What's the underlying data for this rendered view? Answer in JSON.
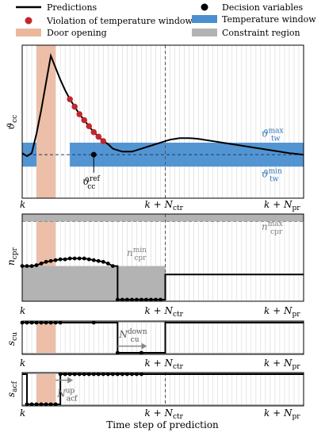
{
  "legend": {
    "predictions": "Predictions",
    "violation": "Violation of temperature window",
    "door": "Door opening",
    "decision": "Decision variables",
    "temp_window": "Temperature window",
    "constraint": "Constraint region"
  },
  "colors": {
    "line": "#000000",
    "violation": "#c0272d",
    "door": "#ebb89e",
    "temp_window": "#4a8fd0",
    "constraint": "#b3b3b3",
    "grid": "#dcdcdc",
    "annotation_gray": "#808080",
    "annotation_blue": "#2b73b6"
  },
  "axis_ticks": {
    "k": "k",
    "k_ctr": "k + N",
    "k_ctr_sub": "ctr",
    "k_pr": "k + N",
    "k_pr_sub": "pr"
  },
  "xlabel": "Time step of prediction",
  "chart_data": [
    {
      "type": "line",
      "panel": "temperature",
      "ylabel": "ϑ",
      "ylabel_sub": "cc",
      "x_range": [
        0,
        59
      ],
      "y_range": [
        0,
        1
      ],
      "n_ctr_step": 30,
      "door_steps": [
        3,
        7
      ],
      "temperature_window": [
        0.2,
        0.36
      ],
      "reference": 0.28,
      "annotations": {
        "max_main": "ϑ",
        "max_sup": "max",
        "max_sub": "tw",
        "min_main": "ϑ",
        "min_sup": "min",
        "min_sub": "tw",
        "ref_main": "ϑ",
        "ref_sup": "ref",
        "ref_sub": "cc"
      },
      "prediction": [
        [
          0,
          0.29
        ],
        [
          1,
          0.27
        ],
        [
          2,
          0.29
        ],
        [
          3,
          0.42
        ],
        [
          4,
          0.58
        ],
        [
          5,
          0.76
        ],
        [
          6,
          0.94
        ],
        [
          7,
          0.86
        ],
        [
          8,
          0.78
        ],
        [
          9,
          0.71
        ],
        [
          10,
          0.65
        ],
        [
          11,
          0.6
        ],
        [
          12,
          0.55
        ],
        [
          13,
          0.51
        ],
        [
          14,
          0.47
        ],
        [
          15,
          0.43
        ],
        [
          16,
          0.4
        ],
        [
          17,
          0.37
        ],
        [
          18,
          0.35
        ],
        [
          19,
          0.32
        ],
        [
          20,
          0.31
        ],
        [
          21,
          0.3
        ],
        [
          22,
          0.3
        ],
        [
          23,
          0.3
        ],
        [
          24,
          0.31
        ],
        [
          25,
          0.32
        ],
        [
          26,
          0.33
        ],
        [
          27,
          0.34
        ],
        [
          28,
          0.35
        ],
        [
          29,
          0.36
        ],
        [
          30,
          0.37
        ],
        [
          31,
          0.38
        ],
        [
          32,
          0.385
        ],
        [
          33,
          0.39
        ],
        [
          34,
          0.39
        ],
        [
          35,
          0.39
        ],
        [
          36,
          0.388
        ],
        [
          37,
          0.385
        ],
        [
          38,
          0.38
        ],
        [
          39,
          0.375
        ],
        [
          40,
          0.37
        ],
        [
          41,
          0.365
        ],
        [
          42,
          0.36
        ],
        [
          43,
          0.355
        ],
        [
          44,
          0.35
        ],
        [
          45,
          0.345
        ],
        [
          46,
          0.34
        ],
        [
          47,
          0.335
        ],
        [
          48,
          0.33
        ],
        [
          49,
          0.325
        ],
        [
          50,
          0.32
        ],
        [
          51,
          0.315
        ],
        [
          52,
          0.31
        ],
        [
          53,
          0.305
        ],
        [
          54,
          0.3
        ],
        [
          55,
          0.295
        ],
        [
          56,
          0.29
        ],
        [
          57,
          0.287
        ],
        [
          58,
          0.283
        ],
        [
          59,
          0.28
        ]
      ],
      "violations": [
        [
          10,
          0.65
        ],
        [
          11,
          0.6
        ],
        [
          12,
          0.55
        ],
        [
          13,
          0.51
        ],
        [
          14,
          0.47
        ],
        [
          15,
          0.43
        ],
        [
          16,
          0.4
        ],
        [
          17,
          0.37
        ]
      ],
      "decision_points": [
        [
          15,
          0.28
        ]
      ]
    },
    {
      "type": "line",
      "panel": "ncpr",
      "ylabel": "n",
      "ylabel_sub": "cpr",
      "x_range": [
        0,
        59
      ],
      "y_range": [
        0,
        1
      ],
      "n_ctr_step": 30,
      "door_steps": [
        3,
        7
      ],
      "max_constraint": 0.93,
      "min_constraint_until_ctr": 0.4,
      "annotations": {
        "max_main": "n",
        "max_sup": "max",
        "max_sub": "cpr",
        "min_main": "n",
        "min_sup": "min",
        "min_sub": "cpr"
      },
      "prediction": [
        [
          0,
          0.4
        ],
        [
          1,
          0.4
        ],
        [
          2,
          0.4
        ],
        [
          3,
          0.41
        ],
        [
          4,
          0.43
        ],
        [
          5,
          0.45
        ],
        [
          6,
          0.46
        ],
        [
          7,
          0.47
        ],
        [
          8,
          0.48
        ],
        [
          9,
          0.48
        ],
        [
          10,
          0.49
        ],
        [
          11,
          0.49
        ],
        [
          12,
          0.49
        ],
        [
          13,
          0.49
        ],
        [
          14,
          0.48
        ],
        [
          15,
          0.47
        ],
        [
          16,
          0.46
        ],
        [
          17,
          0.45
        ],
        [
          18,
          0.43
        ],
        [
          19,
          0.4
        ],
        [
          20,
          0.0
        ],
        [
          21,
          0.0
        ],
        [
          22,
          0.0
        ],
        [
          23,
          0.0
        ],
        [
          24,
          0.0
        ],
        [
          25,
          0.0
        ],
        [
          26,
          0.0
        ],
        [
          27,
          0.0
        ],
        [
          28,
          0.0
        ],
        [
          29,
          0.0
        ],
        [
          30,
          0.3
        ],
        [
          59,
          0.3
        ]
      ],
      "decision_points": [
        [
          0,
          0.4
        ],
        [
          1,
          0.4
        ],
        [
          2,
          0.4
        ],
        [
          3,
          0.41
        ],
        [
          4,
          0.43
        ],
        [
          5,
          0.45
        ],
        [
          6,
          0.46
        ],
        [
          7,
          0.47
        ],
        [
          8,
          0.48
        ],
        [
          9,
          0.48
        ],
        [
          10,
          0.49
        ],
        [
          11,
          0.49
        ],
        [
          12,
          0.49
        ],
        [
          13,
          0.49
        ],
        [
          14,
          0.48
        ],
        [
          15,
          0.47
        ],
        [
          16,
          0.46
        ],
        [
          17,
          0.45
        ],
        [
          18,
          0.43
        ],
        [
          19,
          0.4
        ],
        [
          20,
          0.0
        ],
        [
          21,
          0.0
        ],
        [
          22,
          0.0
        ],
        [
          23,
          0.0
        ],
        [
          24,
          0.0
        ],
        [
          25,
          0.0
        ],
        [
          26,
          0.0
        ],
        [
          27,
          0.0
        ],
        [
          28,
          0.0
        ],
        [
          29,
          0.0
        ]
      ]
    },
    {
      "type": "line",
      "panel": "scu",
      "ylabel": "s",
      "ylabel_sub": "cu",
      "x_range": [
        0,
        59
      ],
      "y_range": [
        0,
        1
      ],
      "n_ctr_step": 30,
      "door_steps": [
        3,
        7
      ],
      "annotation": {
        "main": "N",
        "sup": "down",
        "sub": "cu"
      },
      "prediction": [
        [
          0,
          1
        ],
        [
          19,
          1
        ],
        [
          20,
          0
        ],
        [
          29,
          0
        ],
        [
          30,
          1
        ],
        [
          59,
          1
        ]
      ],
      "decision_points": [
        [
          0,
          1
        ],
        [
          1,
          1
        ],
        [
          2,
          1
        ],
        [
          3,
          1
        ],
        [
          4,
          1
        ],
        [
          5,
          1
        ],
        [
          6,
          1
        ],
        [
          7,
          1
        ],
        [
          8,
          1
        ],
        [
          15,
          1
        ],
        [
          20,
          0
        ],
        [
          25,
          0
        ]
      ]
    },
    {
      "type": "line",
      "panel": "sacf",
      "ylabel": "s",
      "ylabel_sub": "acf",
      "x_range": [
        0,
        59
      ],
      "y_range": [
        0,
        1
      ],
      "n_ctr_step": 30,
      "door_steps": [
        3,
        7
      ],
      "annotation": {
        "main": "N",
        "sup": "up",
        "sub": "acf"
      },
      "prediction": [
        [
          0,
          1
        ],
        [
          1,
          1
        ],
        [
          1,
          0
        ],
        [
          7,
          0
        ],
        [
          8,
          1
        ],
        [
          59,
          1
        ]
      ],
      "decision_points": [
        [
          1,
          0
        ],
        [
          2,
          0
        ],
        [
          3,
          0
        ],
        [
          4,
          0
        ],
        [
          5,
          0
        ],
        [
          6,
          0
        ],
        [
          7,
          0
        ],
        [
          8,
          1
        ],
        [
          9,
          1
        ],
        [
          10,
          1
        ],
        [
          11,
          1
        ],
        [
          12,
          1
        ],
        [
          13,
          1
        ],
        [
          14,
          1
        ],
        [
          15,
          1
        ],
        [
          16,
          1
        ],
        [
          17,
          1
        ],
        [
          18,
          1
        ],
        [
          19,
          1
        ],
        [
          20,
          1
        ],
        [
          21,
          1
        ],
        [
          22,
          1
        ],
        [
          23,
          1
        ],
        [
          24,
          1
        ],
        [
          25,
          1
        ]
      ]
    }
  ]
}
